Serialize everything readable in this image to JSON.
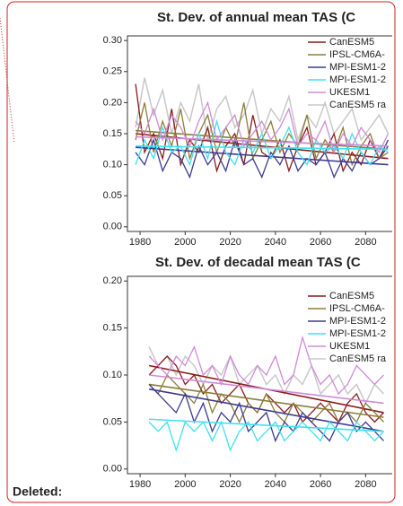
{
  "chart_data": [
    {
      "type": "line",
      "title": "St. Dev. of annual  mean TAS (C",
      "x": [
        1978,
        1982,
        1986,
        1990,
        1994,
        1998,
        2002,
        2006,
        2010,
        2014,
        2018,
        2022,
        2026,
        2030,
        2034,
        2038,
        2042,
        2046,
        2050,
        2054,
        2058,
        2062,
        2066,
        2070,
        2074,
        2078,
        2082,
        2086,
        2090
      ],
      "xlim": [
        1974.4,
        2091
      ],
      "xticks": [
        1980,
        2000,
        2020,
        2040,
        2060,
        2080
      ],
      "ylim": [
        -0.0075,
        0.3075
      ],
      "yticks": [
        {
          "value": 0,
          "label": "0.00"
        },
        {
          "value": 0.05,
          "label": "0.05"
        },
        {
          "value": 0.1,
          "label": "0.10"
        },
        {
          "value": 0.15,
          "label": "0.15"
        },
        {
          "value": 0.2,
          "label": "0.20"
        },
        {
          "value": 0.25,
          "label": "0.25"
        },
        {
          "value": 0.3,
          "label": "0.30"
        }
      ],
      "series": [
        {
          "name": "CanESM5 ra",
          "color": "#c8c8c8",
          "values": [
            0.16,
            0.24,
            0.18,
            0.22,
            0.15,
            0.2,
            0.17,
            0.23,
            0.14,
            0.19,
            0.21,
            0.16,
            0.18,
            0.22,
            0.15,
            0.19,
            0.17,
            0.21,
            0.14,
            0.18,
            0.16,
            0.2,
            0.15,
            0.17,
            0.19,
            0.14,
            0.16,
            0.18,
            0.15
          ]
        },
        {
          "name": "CanESM5",
          "color": "#8b1a1a",
          "trend": [
            0.15,
            0.11
          ],
          "values": [
            0.23,
            0.12,
            0.15,
            0.11,
            0.19,
            0.1,
            0.14,
            0.12,
            0.16,
            0.09,
            0.13,
            0.15,
            0.1,
            0.18,
            0.12,
            0.11,
            0.14,
            0.09,
            0.13,
            0.16,
            0.1,
            0.12,
            0.15,
            0.09,
            0.12,
            0.1,
            0.14,
            0.11,
            0.13
          ]
        },
        {
          "name": "IPSL-CM6A-",
          "color": "#8b7d3a",
          "trend": [
            0.155,
            0.125
          ],
          "values": [
            0.14,
            0.2,
            0.12,
            0.17,
            0.13,
            0.19,
            0.11,
            0.15,
            0.18,
            0.12,
            0.16,
            0.13,
            0.2,
            0.11,
            0.14,
            0.17,
            0.12,
            0.15,
            0.13,
            0.18,
            0.11,
            0.14,
            0.12,
            0.16,
            0.1,
            0.13,
            0.15,
            0.11,
            0.12
          ]
        },
        {
          "name": "MPI-ESM1-2",
          "color": "#3b3b8f",
          "trend": [
            0.128,
            0.1
          ],
          "values": [
            0.12,
            0.1,
            0.14,
            0.09,
            0.12,
            0.11,
            0.08,
            0.13,
            0.1,
            0.12,
            0.09,
            0.14,
            0.1,
            0.11,
            0.08,
            0.12,
            0.1,
            0.13,
            0.09,
            0.11,
            0.1,
            0.12,
            0.08,
            0.11,
            0.09,
            0.12,
            0.1,
            0.11,
            0.14
          ]
        },
        {
          "name": "MPI-ESM1-2",
          "color": "#40e0f0",
          "trend": [
            0.13,
            0.125
          ],
          "values": [
            0.1,
            0.14,
            0.11,
            0.16,
            0.12,
            0.13,
            0.1,
            0.15,
            0.11,
            0.17,
            0.12,
            0.1,
            0.14,
            0.12,
            0.15,
            0.11,
            0.13,
            0.16,
            0.12,
            0.1,
            0.14,
            0.12,
            0.13,
            0.11,
            0.15,
            0.12,
            0.1,
            0.13,
            0.12
          ]
        },
        {
          "name": "UKESM1",
          "color": "#d08ad8",
          "trend": [
            0.145,
            0.13
          ],
          "values": [
            0.17,
            0.15,
            0.19,
            0.14,
            0.18,
            0.16,
            0.13,
            0.17,
            0.2,
            0.14,
            0.16,
            0.18,
            0.13,
            0.15,
            0.17,
            0.14,
            0.16,
            0.19,
            0.13,
            0.15,
            0.14,
            0.17,
            0.12,
            0.15,
            0.13,
            0.16,
            0.14,
            0.12,
            0.15
          ]
        }
      ]
    },
    {
      "type": "line",
      "title": "St. Dev. of decadal mean TAS (C",
      "x": [
        1984,
        1988,
        1992,
        1996,
        2000,
        2004,
        2008,
        2012,
        2016,
        2020,
        2024,
        2028,
        2032,
        2036,
        2040,
        2044,
        2048,
        2052,
        2056,
        2060,
        2064,
        2068,
        2072,
        2076,
        2080,
        2084,
        2088
      ],
      "xlim": [
        1974.4,
        2091
      ],
      "xticks": [
        1980,
        2000,
        2020,
        2040,
        2060,
        2080
      ],
      "ylim": [
        -0.005,
        0.205
      ],
      "yticks": [
        {
          "value": 0,
          "label": "0.00"
        },
        {
          "value": 0.05,
          "label": "0.05"
        },
        {
          "value": 0.1,
          "label": "0.10"
        },
        {
          "value": 0.15,
          "label": "0.15"
        },
        {
          "value": 0.2,
          "label": "0.20"
        }
      ],
      "series": [
        {
          "name": "CanESM5 ra",
          "color": "#c8c8c8",
          "values": [
            0.13,
            0.11,
            0.12,
            0.1,
            0.12,
            0.11,
            0.09,
            0.11,
            0.1,
            0.12,
            0.09,
            0.1,
            0.11,
            0.09,
            0.1,
            0.08,
            0.1,
            0.09,
            0.11,
            0.08,
            0.09,
            0.1,
            0.08,
            0.09,
            0.07,
            0.09,
            0.08
          ]
        },
        {
          "name": "CanESM5",
          "color": "#8b1a1a",
          "trend": [
            0.11,
            0.06
          ],
          "values": [
            0.1,
            0.11,
            0.12,
            0.11,
            0.09,
            0.1,
            0.08,
            0.09,
            0.07,
            0.08,
            0.09,
            0.07,
            0.06,
            0.08,
            0.07,
            0.06,
            0.07,
            0.05,
            0.06,
            0.07,
            0.06,
            0.05,
            0.07,
            0.08,
            0.06,
            0.05,
            0.06
          ]
        },
        {
          "name": "IPSL-CM6A-",
          "color": "#8b7d3a",
          "trend": [
            0.09,
            0.055
          ],
          "values": [
            0.09,
            0.08,
            0.1,
            0.09,
            0.08,
            0.07,
            0.09,
            0.06,
            0.08,
            0.07,
            0.05,
            0.07,
            0.06,
            0.08,
            0.06,
            0.05,
            0.07,
            0.06,
            0.05,
            0.06,
            0.07,
            0.05,
            0.06,
            0.05,
            0.07,
            0.06,
            0.05
          ]
        },
        {
          "name": "MPI-ESM1-2",
          "color": "#3b3b8f",
          "trend": [
            0.085,
            0.04
          ],
          "values": [
            0.09,
            0.08,
            0.07,
            0.06,
            0.08,
            0.05,
            0.07,
            0.04,
            0.06,
            0.05,
            0.07,
            0.04,
            0.05,
            0.06,
            0.03,
            0.05,
            0.04,
            0.06,
            0.05,
            0.04,
            0.03,
            0.05,
            0.06,
            0.04,
            0.05,
            0.04,
            0.03
          ]
        },
        {
          "name": "MPI-ESM1-2",
          "color": "#40e0f0",
          "trend": [
            0.053,
            0.04
          ],
          "values": [
            0.05,
            0.04,
            0.05,
            0.02,
            0.05,
            0.04,
            0.05,
            0.03,
            0.05,
            0.02,
            0.04,
            0.05,
            0.03,
            0.04,
            0.05,
            0.03,
            0.04,
            0.05,
            0.04,
            0.03,
            0.05,
            0.04,
            0.03,
            0.05,
            0.04,
            0.03,
            0.04
          ]
        },
        {
          "name": "UKESM1",
          "color": "#d08ad8",
          "trend": [
            0.1,
            0.07
          ],
          "values": [
            0.12,
            0.11,
            0.1,
            0.12,
            0.11,
            0.13,
            0.1,
            0.11,
            0.09,
            0.12,
            0.1,
            0.09,
            0.11,
            0.1,
            0.12,
            0.09,
            0.1,
            0.14,
            0.11,
            0.09,
            0.1,
            0.08,
            0.09,
            0.11,
            0.1,
            0.09,
            0.1
          ]
        }
      ]
    }
  ],
  "comment": {
    "label": "Deleted:"
  }
}
